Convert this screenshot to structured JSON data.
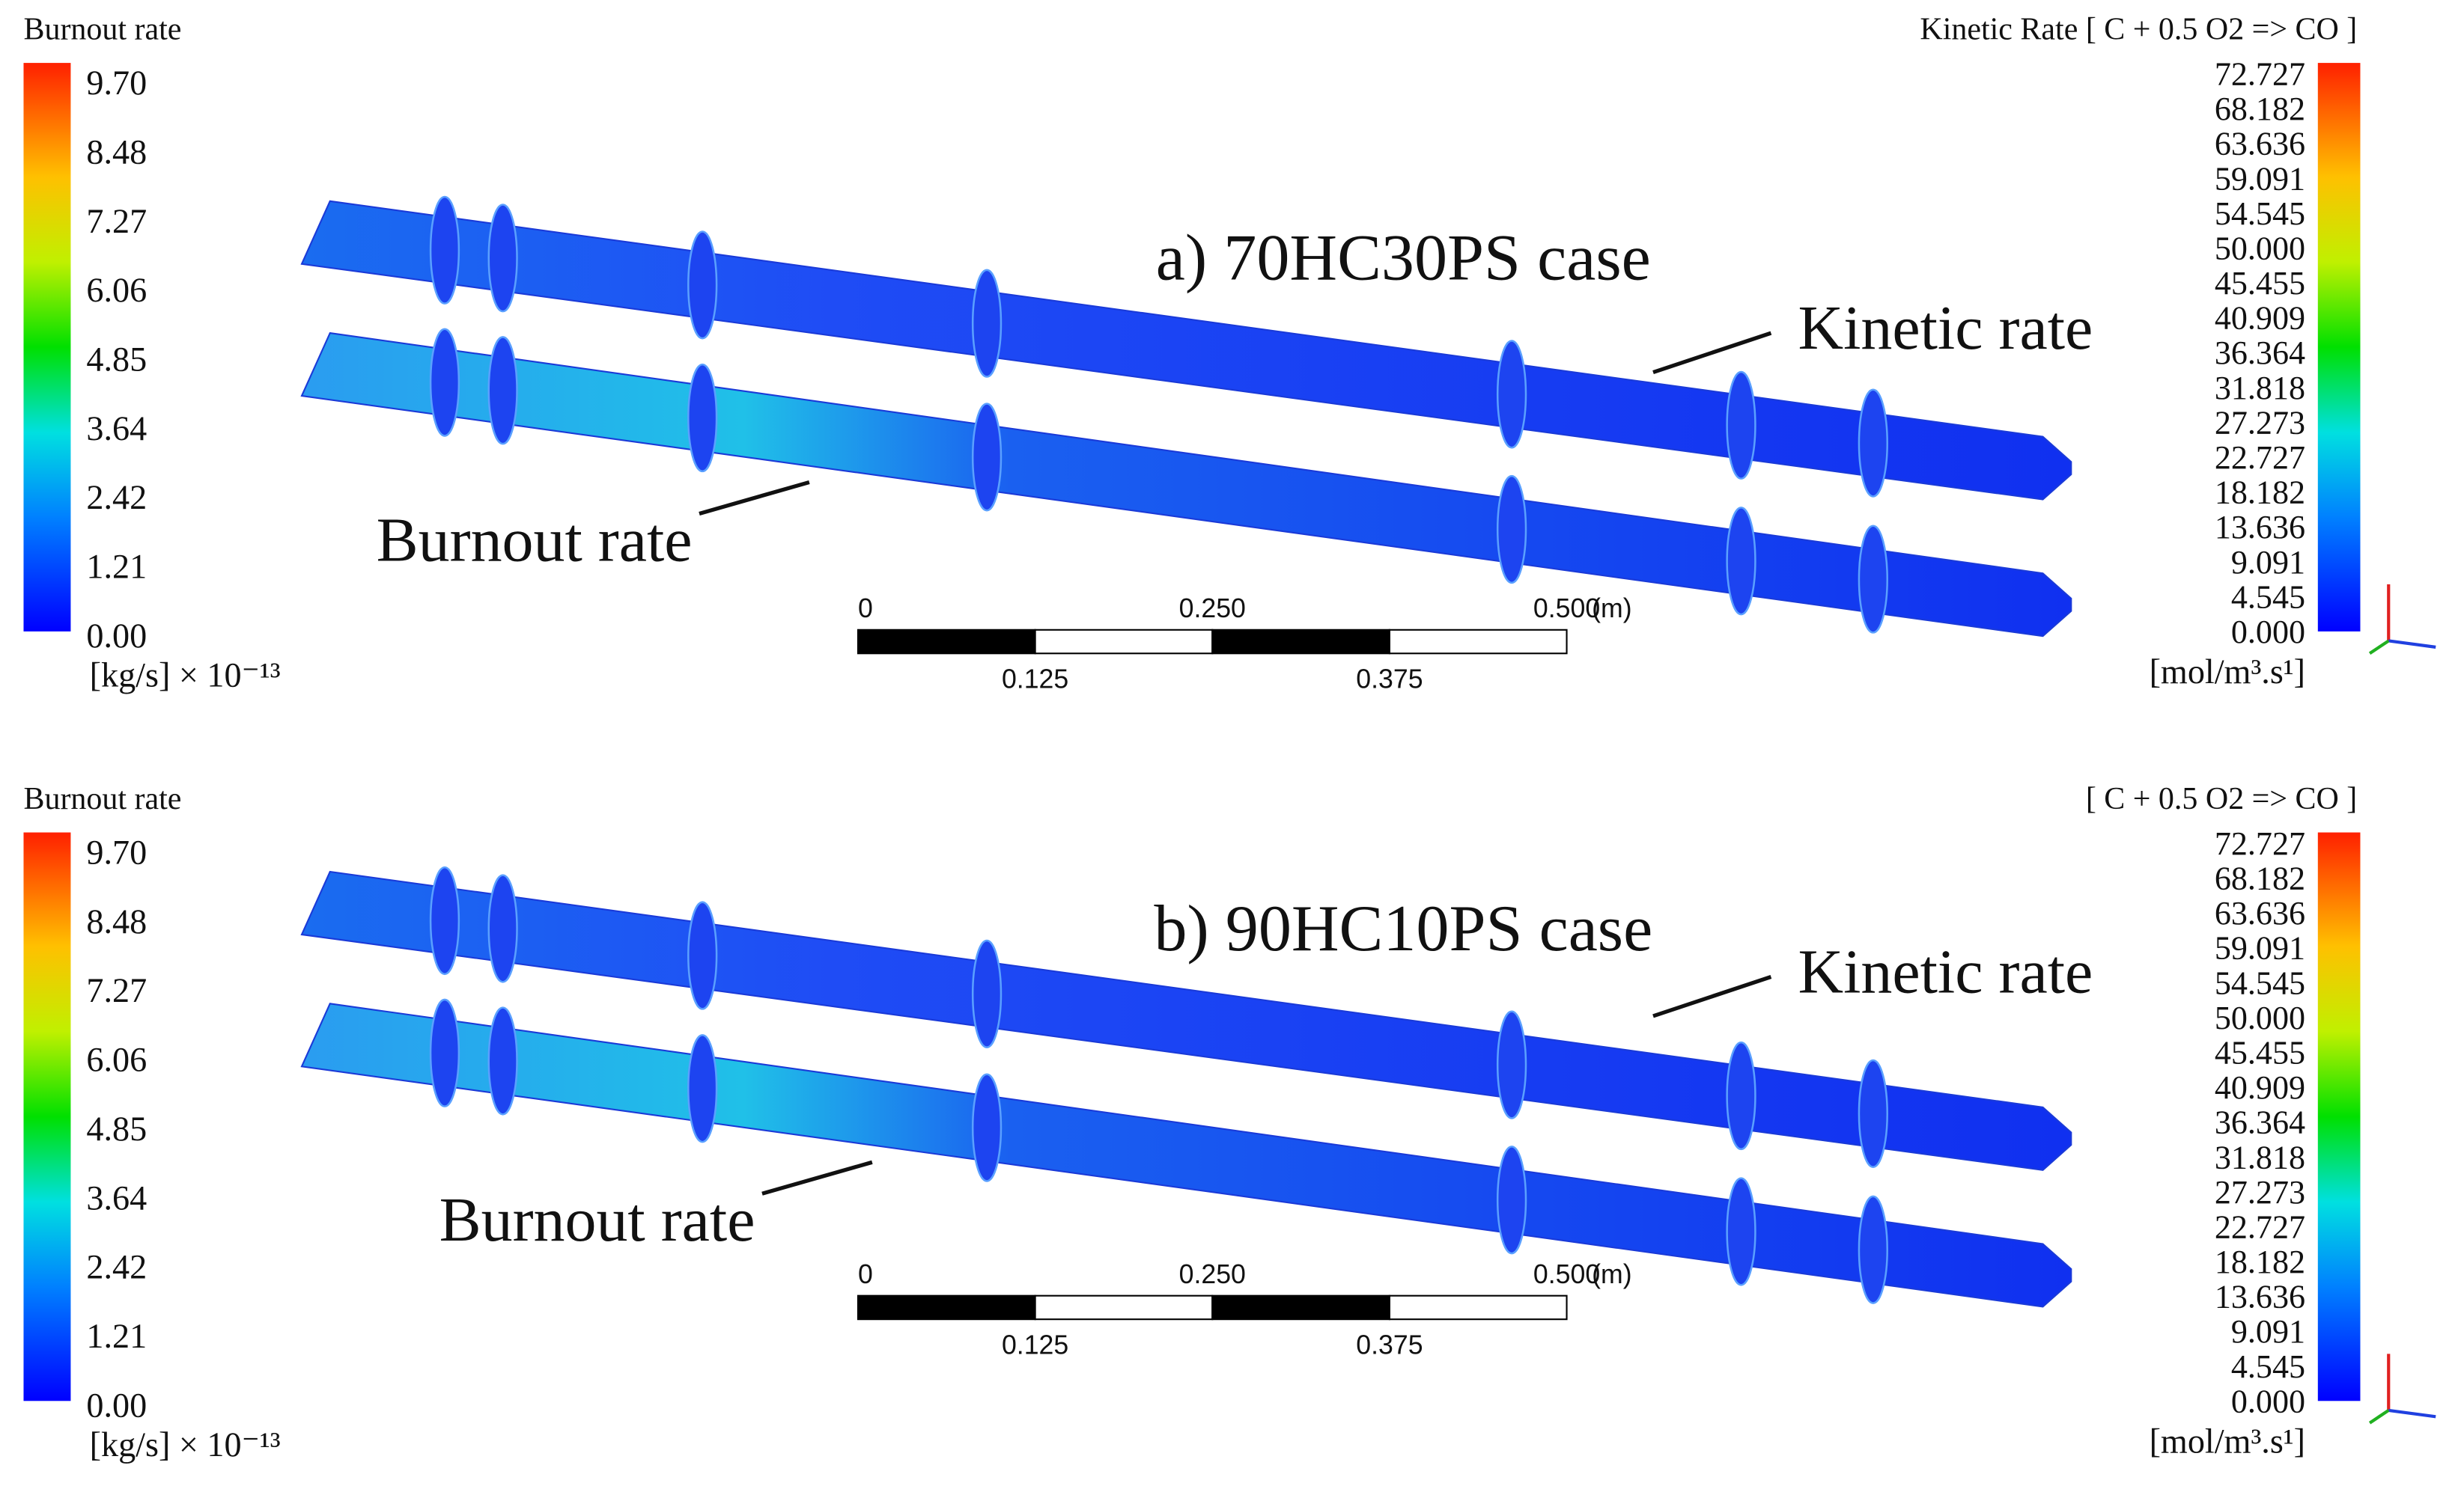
{
  "panels": [
    {
      "caption": "a) 70HC30PS case",
      "kinetic_label": "Kinetic rate",
      "burnout_label": "Burnout rate",
      "left_scale": {
        "title": "Burnout rate",
        "ticks": [
          "9.70",
          "8.48",
          "7.27",
          "6.06",
          "4.85",
          "3.64",
          "2.42",
          "1.21",
          "0.00"
        ],
        "unit": "[kg/s] × 10⁻¹³"
      },
      "right_scale": {
        "title": "Kinetic Rate [ C + 0.5 O2 => CO ]",
        "ticks": [
          "72.727",
          "68.182",
          "63.636",
          "59.091",
          "54.545",
          "50.000",
          "45.455",
          "40.909",
          "36.364",
          "31.818",
          "27.273",
          "22.727",
          "18.182",
          "13.636",
          "9.091",
          "4.545",
          "0.000"
        ],
        "unit": "[mol/m³.s¹]"
      },
      "scale_bar": {
        "top": [
          "0",
          "0.250",
          "0.500"
        ],
        "unit": "(m)",
        "bottom": [
          "0.125",
          "0.375"
        ]
      }
    },
    {
      "caption": "b) 90HC10PS case",
      "kinetic_label": "Kinetic rate",
      "burnout_label": "Burnout rate",
      "left_scale": {
        "title": "Burnout rate",
        "ticks": [
          "9.70",
          "8.48",
          "7.27",
          "6.06",
          "4.85",
          "3.64",
          "2.42",
          "1.21",
          "0.00"
        ],
        "unit": "[kg/s] × 10⁻¹³"
      },
      "right_scale": {
        "title": "[ C + 0.5 O2 => CO ]",
        "ticks": [
          "72.727",
          "68.182",
          "63.636",
          "59.091",
          "54.545",
          "50.000",
          "45.455",
          "40.909",
          "36.364",
          "31.818",
          "27.273",
          "22.727",
          "18.182",
          "13.636",
          "9.091",
          "4.545",
          "0.000"
        ],
        "unit": "[mol/m³.s¹]"
      },
      "scale_bar": {
        "top": [
          "0",
          "0.250",
          "0.500"
        ],
        "unit": "(m)",
        "bottom": [
          "0.125",
          "0.375"
        ]
      }
    }
  ]
}
